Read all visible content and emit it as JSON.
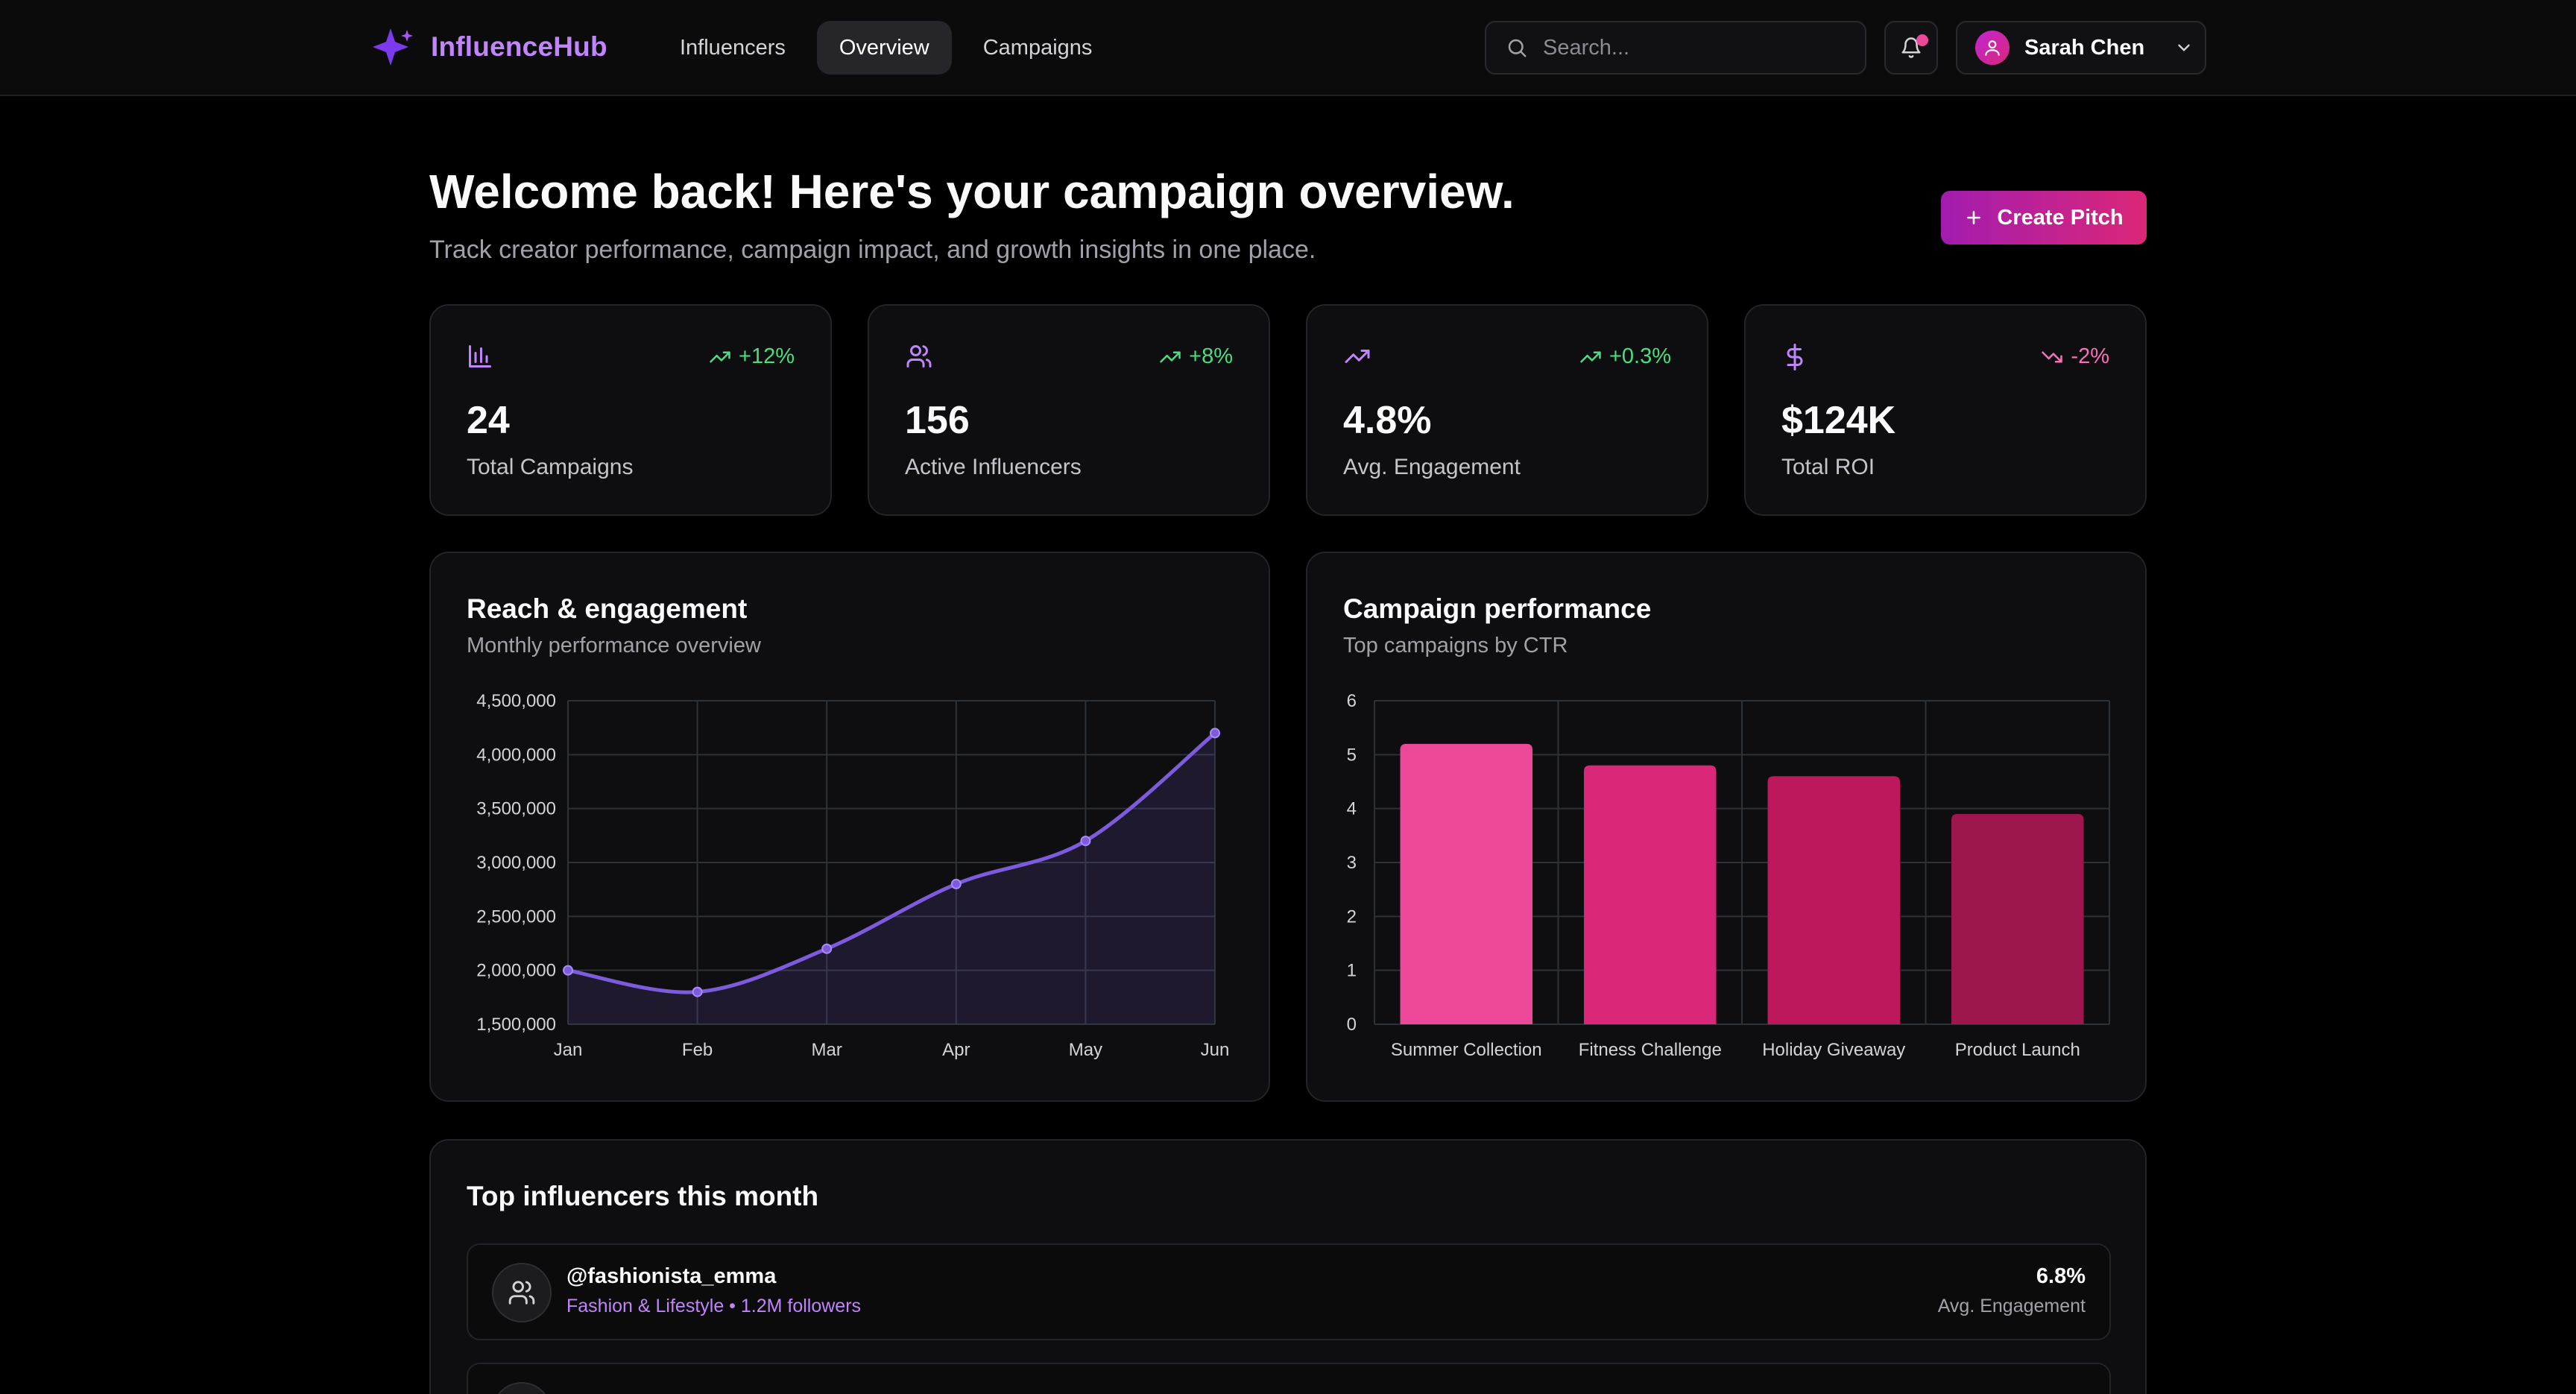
{
  "nav": {
    "brand": "InfluenceHub",
    "links": [
      {
        "label": "Influencers",
        "active": false
      },
      {
        "label": "Overview",
        "active": true
      },
      {
        "label": "Campaigns",
        "active": false
      }
    ],
    "search_placeholder": "Search...",
    "user_name": "Sarah Chen"
  },
  "header": {
    "title": "Welcome back! Here's your campaign overview.",
    "subtitle": "Track creator performance, campaign impact, and growth insights in one place.",
    "cta_label": "Create Pitch"
  },
  "stats": [
    {
      "icon": "bar-chart-icon",
      "trend": "+12%",
      "direction": "up",
      "value": "24",
      "label": "Total Campaigns"
    },
    {
      "icon": "users-icon",
      "trend": "+8%",
      "direction": "up",
      "value": "156",
      "label": "Active Influencers"
    },
    {
      "icon": "trending-up-icon",
      "trend": "+0.3%",
      "direction": "up",
      "value": "4.8%",
      "label": "Avg. Engagement"
    },
    {
      "icon": "dollar-icon",
      "trend": "-2%",
      "direction": "down",
      "value": "$124K",
      "label": "Total ROI"
    }
  ],
  "reach_card": {
    "title": "Reach & engagement",
    "subtitle": "Monthly performance overview"
  },
  "campaign_card": {
    "title": "Campaign performance",
    "subtitle": "Top campaigns by CTR"
  },
  "chart_data": [
    {
      "type": "area",
      "categories": [
        "Jan",
        "Feb",
        "Mar",
        "Apr",
        "May",
        "Jun"
      ],
      "series": [
        {
          "values": [
            2000000,
            1800000,
            2200000,
            2800000,
            3200000,
            4200000
          ]
        }
      ],
      "ylim": [
        1500000,
        4500000
      ],
      "yticks": [
        "1,500,000",
        "2,000,000",
        "2,500,000",
        "3,000,000",
        "3,500,000",
        "4,000,000",
        "4,500,000"
      ],
      "grid": true,
      "color": "#7c5cdc"
    },
    {
      "type": "bar",
      "categories": [
        "Summer Collection",
        "Fitness Challenge",
        "Holiday Giveaway",
        "Product Launch"
      ],
      "values": [
        5.2,
        4.8,
        4.6,
        3.9
      ],
      "ylim": [
        0,
        6
      ],
      "yticks": [
        "0",
        "1",
        "2",
        "3",
        "4",
        "5",
        "6"
      ],
      "grid": true,
      "colors": [
        "#ec4899",
        "#db2777",
        "#be185d",
        "#9d174d"
      ]
    }
  ],
  "influencers": {
    "title": "Top influencers this month",
    "rows": [
      {
        "handle": "@fashionista_emma",
        "meta": "Fashion & Lifestyle • 1.2M followers",
        "engagement": "6.8%",
        "engagement_label": "Avg. Engagement"
      }
    ]
  }
}
